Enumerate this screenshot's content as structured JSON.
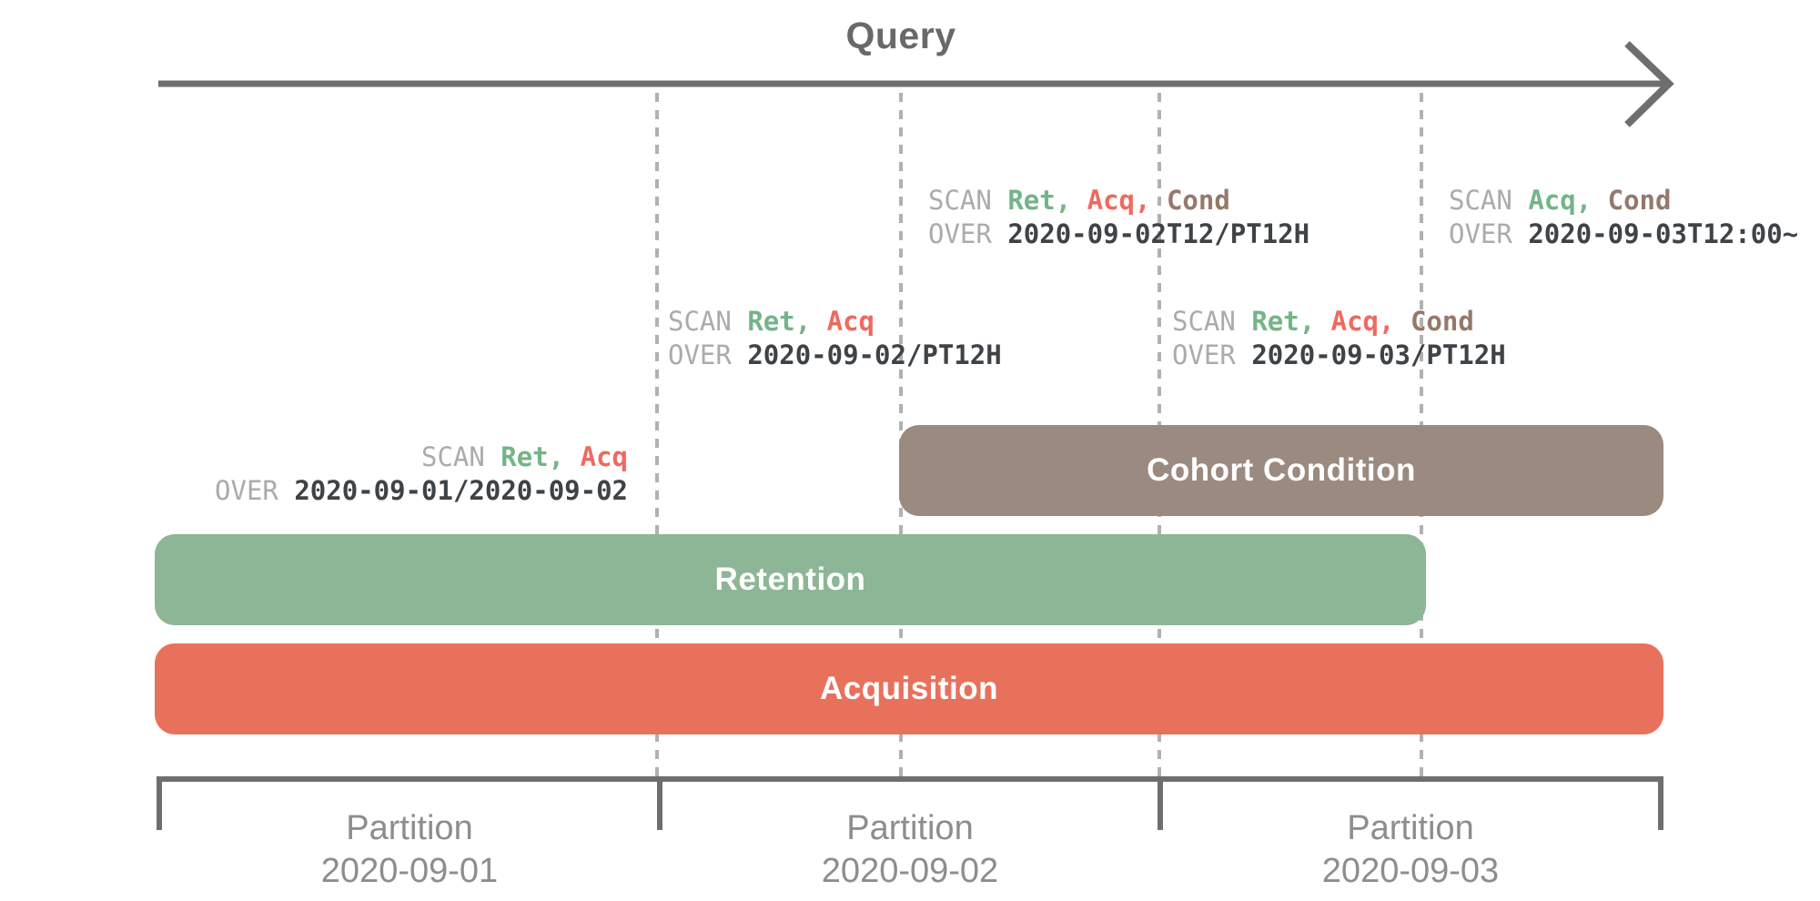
{
  "title": "Query",
  "colors": {
    "title_gray": "#696969",
    "arrow_gray": "#6e6e6e",
    "dash_gray": "#b1b1b1",
    "axis_gray": "#6e6e6e",
    "label_gray": "#8d8d8d",
    "keyword_gray": "#ababab",
    "value_dark": "#3e4347",
    "measure_green": "#74b487",
    "measure_red": "#ee6a60",
    "measure_brown": "#95796c",
    "bar_green": "#8db696",
    "bar_red": "#e8715c",
    "bar_taupe": "#9b8a80"
  },
  "scan_blocks": [
    {
      "keyword_scan": "SCAN",
      "keyword_over": "OVER",
      "measures": [
        {
          "text": "Ret,",
          "color": "green"
        },
        {
          "text": "Acq",
          "color": "red"
        }
      ],
      "over_value": "2020-09-01/2020-09-02"
    },
    {
      "keyword_scan": "SCAN",
      "keyword_over": "OVER",
      "measures": [
        {
          "text": "Ret,",
          "color": "green"
        },
        {
          "text": "Acq",
          "color": "red"
        }
      ],
      "over_value": "2020-09-02/PT12H"
    },
    {
      "keyword_scan": "SCAN",
      "keyword_over": "OVER",
      "measures": [
        {
          "text": "Ret,",
          "color": "green"
        },
        {
          "text": "Acq,",
          "color": "red"
        },
        {
          "text": "Cond",
          "color": "brown"
        }
      ],
      "over_value": "2020-09-02T12/PT12H"
    },
    {
      "keyword_scan": "SCAN",
      "keyword_over": "OVER",
      "measures": [
        {
          "text": "Ret,",
          "color": "green"
        },
        {
          "text": "Acq,",
          "color": "red"
        },
        {
          "text": "Cond",
          "color": "brown"
        }
      ],
      "over_value": "2020-09-03/PT12H"
    },
    {
      "keyword_scan": "SCAN",
      "keyword_over": "OVER",
      "measures": [
        {
          "text": "Acq,",
          "color": "green"
        },
        {
          "text": "Cond",
          "color": "brown"
        }
      ],
      "over_value": "2020-09-03T12:00~"
    }
  ],
  "bars": [
    {
      "label": "Cohort Condition"
    },
    {
      "label": "Retention"
    },
    {
      "label": "Acquisition"
    }
  ],
  "axis": {
    "partitions": [
      {
        "line1": "Partition",
        "line2": "2020-09-01"
      },
      {
        "line1": "Partition",
        "line2": "2020-09-02"
      },
      {
        "line1": "Partition",
        "line2": "2020-09-03"
      }
    ]
  }
}
